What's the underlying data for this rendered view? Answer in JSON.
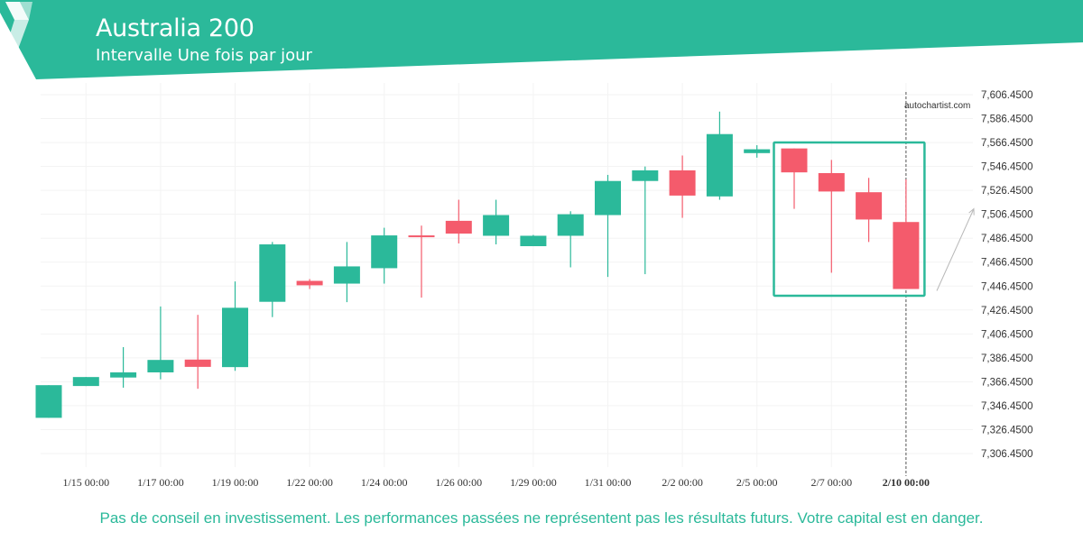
{
  "header": {
    "title": "Australia 200",
    "subtitle": "Intervalle Une fois par jour"
  },
  "colors": {
    "brand": "#2bb99a",
    "up": "#2bb99a",
    "down": "#f45b6c",
    "grid": "#f3f3f3",
    "text": "#333333",
    "projection": "#b8b8b8"
  },
  "watermark": "autochartist.com",
  "disclaimer": "Pas de conseil en investissement. Les performances passées ne représentent pas les résultats futurs. Votre capital est en danger.",
  "chart_data": {
    "type": "candlestick",
    "ylim": [
      7296.45,
      7611.45
    ],
    "y_ticks": [
      "7,306.4500",
      "7,326.4500",
      "7,346.4500",
      "7,366.4500",
      "7,386.4500",
      "7,406.4500",
      "7,426.4500",
      "7,446.4500",
      "7,466.4500",
      "7,486.4500",
      "7,506.4500",
      "7,526.4500",
      "7,546.4500",
      "7,566.4500",
      "7,586.4500",
      "7,606.4500"
    ],
    "y_tick_values": [
      7306.45,
      7326.45,
      7346.45,
      7366.45,
      7386.45,
      7406.45,
      7426.45,
      7446.45,
      7466.45,
      7486.45,
      7506.45,
      7526.45,
      7546.45,
      7566.45,
      7586.45,
      7606.45
    ],
    "x_tick_labels": [
      "1/15 00:00",
      "1/17 00:00",
      "1/19 00:00",
      "1/22 00:00",
      "1/24 00:00",
      "1/26 00:00",
      "1/29 00:00",
      "1/31 00:00",
      "2/2 00:00",
      "2/5 00:00",
      "2/7 00:00",
      "2/10 00:00"
    ],
    "x_tick_bars": [
      1,
      3,
      5,
      7,
      9,
      11,
      13,
      15,
      17,
      19,
      21,
      23
    ],
    "current_label": "2/10 00:00",
    "candles": [
      {
        "open": 7336.3,
        "high": 7363.6,
        "low": 7336.3,
        "close": 7363.6
      },
      {
        "open": 7362.9,
        "high": 7370.4,
        "low": 7362.9,
        "close": 7370.4
      },
      {
        "open": 7370.0,
        "high": 7395.4,
        "low": 7361.5,
        "close": 7374.3
      },
      {
        "open": 7374.3,
        "high": 7429.4,
        "low": 7368.5,
        "close": 7384.7
      },
      {
        "open": 7385.0,
        "high": 7422.4,
        "low": 7360.6,
        "close": 7378.9
      },
      {
        "open": 7378.7,
        "high": 7450.3,
        "low": 7375.6,
        "close": 7428.3
      },
      {
        "open": 7433.3,
        "high": 7483.3,
        "low": 7420.5,
        "close": 7481.3
      },
      {
        "open": 7450.8,
        "high": 7452.3,
        "low": 7444.0,
        "close": 7447.1
      },
      {
        "open": 7448.5,
        "high": 7483.3,
        "low": 7433.0,
        "close": 7462.9
      },
      {
        "open": 7461.4,
        "high": 7495.2,
        "low": 7448.5,
        "close": 7488.8
      },
      {
        "open": 7488.8,
        "high": 7497.0,
        "low": 7436.8,
        "close": 7487.6
      },
      {
        "open": 7501.0,
        "high": 7518.6,
        "low": 7482.1,
        "close": 7490.3
      },
      {
        "open": 7488.5,
        "high": 7518.6,
        "low": 7481.3,
        "close": 7505.8
      },
      {
        "open": 7479.8,
        "high": 7489.2,
        "low": 7479.8,
        "close": 7488.5
      },
      {
        "open": 7488.5,
        "high": 7509.0,
        "low": 7462.1,
        "close": 7506.5
      },
      {
        "open": 7505.8,
        "high": 7539.4,
        "low": 7454.1,
        "close": 7534.3
      },
      {
        "open": 7534.3,
        "high": 7546.4,
        "low": 7456.4,
        "close": 7543.2
      },
      {
        "open": 7543.2,
        "high": 7555.6,
        "low": 7503.5,
        "close": 7522.1
      },
      {
        "open": 7521.4,
        "high": 7592.3,
        "low": 7518.6,
        "close": 7573.5
      },
      {
        "open": 7557.6,
        "high": 7564.2,
        "low": 7553.8,
        "close": 7560.8
      },
      {
        "open": 7561.5,
        "high": 7561.5,
        "low": 7511.0,
        "close": 7541.5
      },
      {
        "open": 7540.9,
        "high": 7551.9,
        "low": 7457.6,
        "close": 7525.5
      },
      {
        "open": 7524.9,
        "high": 7536.9,
        "low": 7483.3,
        "close": 7502.1
      },
      {
        "open": 7500.0,
        "high": 7535.6,
        "low": 7444.0,
        "close": 7444.0
      }
    ],
    "pattern_box": {
      "from_bar": 20,
      "to_bar": 23,
      "high": 7566.5,
      "low": 7438.4
    },
    "projection": {
      "from_value": 7444.0,
      "to_value": 7508.0
    },
    "grid": true
  }
}
